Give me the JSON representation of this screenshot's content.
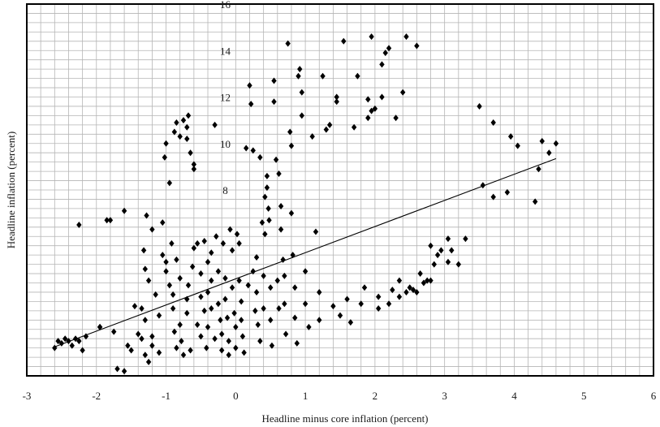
{
  "chart_data": {
    "type": "scatter",
    "title": "",
    "xlabel": "Headline minus core inflation (percent)",
    "ylabel": "Headline inflation (percent)",
    "xlim": [
      -3,
      6
    ],
    "ylim": [
      0,
      16
    ],
    "x_ticks": [
      -3,
      -2,
      -1,
      0,
      1,
      2,
      3,
      4,
      5,
      6
    ],
    "y_ticks_labeled": [
      8,
      10,
      12,
      14,
      16
    ],
    "grid": true,
    "series": [
      {
        "marker": "diamond",
        "color": "#000000",
        "points": [
          [
            -2.6,
            1.2
          ],
          [
            -2.55,
            1.5
          ],
          [
            -2.5,
            1.4
          ],
          [
            -2.45,
            1.6
          ],
          [
            -2.4,
            1.5
          ],
          [
            -2.35,
            1.3
          ],
          [
            -2.3,
            1.6
          ],
          [
            -2.25,
            1.5
          ],
          [
            -2.2,
            1.1
          ],
          [
            -2.15,
            1.7
          ],
          [
            -2.25,
            6.5
          ],
          [
            -1.85,
            6.7
          ],
          [
            -1.8,
            6.7
          ],
          [
            -1.95,
            2.1
          ],
          [
            -1.95,
            2.1
          ],
          [
            -1.75,
            1.9
          ],
          [
            -1.6,
            7.1
          ],
          [
            -1.6,
            0.2
          ],
          [
            -1.55,
            1.3
          ],
          [
            -1.5,
            1.1
          ],
          [
            -1.7,
            0.3
          ],
          [
            -1.45,
            3.0
          ],
          [
            -1.4,
            1.8
          ],
          [
            -1.35,
            2.9
          ],
          [
            -1.35,
            1.6
          ],
          [
            -1.3,
            2.4
          ],
          [
            -1.3,
            0.9
          ],
          [
            -1.25,
            0.6
          ],
          [
            -1.2,
            1.3
          ],
          [
            -1.2,
            6.3
          ],
          [
            -1.28,
            6.9
          ],
          [
            -1.32,
            5.4
          ],
          [
            -1.3,
            4.6
          ],
          [
            -1.25,
            4.1
          ],
          [
            -1.2,
            1.7
          ],
          [
            -1.15,
            3.5
          ],
          [
            -1.1,
            2.6
          ],
          [
            -1.1,
            1.0
          ],
          [
            -1.05,
            5.2
          ],
          [
            -1.0,
            4.5
          ],
          [
            -1.05,
            6.6
          ],
          [
            -1.02,
            9.4
          ],
          [
            -1.0,
            10.0
          ],
          [
            -0.95,
            8.3
          ],
          [
            -1.0,
            4.9
          ],
          [
            -0.95,
            3.9
          ],
          [
            -0.9,
            3.5
          ],
          [
            -0.9,
            2.9
          ],
          [
            -0.88,
            1.9
          ],
          [
            -0.85,
            1.2
          ],
          [
            -0.92,
            5.7
          ],
          [
            -0.85,
            5.0
          ],
          [
            -0.8,
            4.2
          ],
          [
            -0.8,
            2.2
          ],
          [
            -0.78,
            1.5
          ],
          [
            -0.75,
            0.9
          ],
          [
            -0.7,
            3.3
          ],
          [
            -0.7,
            2.7
          ],
          [
            -0.68,
            3.9
          ],
          [
            -0.65,
            1.1
          ],
          [
            -0.88,
            10.5
          ],
          [
            -0.85,
            10.9
          ],
          [
            -0.8,
            10.3
          ],
          [
            -0.75,
            11.0
          ],
          [
            -0.7,
            10.2
          ],
          [
            -0.7,
            10.7
          ],
          [
            -0.68,
            11.2
          ],
          [
            -0.65,
            9.6
          ],
          [
            -0.6,
            9.1
          ],
          [
            -0.6,
            8.9
          ],
          [
            -0.62,
            4.7
          ],
          [
            -0.6,
            5.5
          ],
          [
            -0.55,
            5.7
          ],
          [
            -0.55,
            2.2
          ],
          [
            -0.5,
            4.4
          ],
          [
            -0.5,
            3.4
          ],
          [
            -0.5,
            1.7
          ],
          [
            -0.45,
            5.8
          ],
          [
            -0.45,
            2.8
          ],
          [
            -0.42,
            1.2
          ],
          [
            -0.4,
            4.9
          ],
          [
            -0.4,
            3.6
          ],
          [
            -0.4,
            2.1
          ],
          [
            -0.35,
            5.3
          ],
          [
            -0.35,
            4.1
          ],
          [
            -0.35,
            2.9
          ],
          [
            -0.3,
            1.6
          ],
          [
            -0.3,
            10.8
          ],
          [
            -0.28,
            6.0
          ],
          [
            -0.25,
            4.5
          ],
          [
            -0.25,
            3.1
          ],
          [
            -0.22,
            2.4
          ],
          [
            -0.2,
            1.8
          ],
          [
            -0.2,
            1.1
          ],
          [
            -0.18,
            5.7
          ],
          [
            -0.15,
            4.2
          ],
          [
            -0.15,
            3.3
          ],
          [
            -0.12,
            2.5
          ],
          [
            -0.1,
            1.5
          ],
          [
            -0.1,
            0.9
          ],
          [
            -0.08,
            6.3
          ],
          [
            -0.05,
            5.4
          ],
          [
            -0.05,
            3.8
          ],
          [
            -0.02,
            2.7
          ],
          [
            0.0,
            2.1
          ],
          [
            0.0,
            1.2
          ],
          [
            0.02,
            6.1
          ],
          [
            0.05,
            5.7
          ],
          [
            0.05,
            4.1
          ],
          [
            0.08,
            3.2
          ],
          [
            0.08,
            2.4
          ],
          [
            0.1,
            1.7
          ],
          [
            0.12,
            1.0
          ],
          [
            0.15,
            9.8
          ],
          [
            0.18,
            3.9
          ],
          [
            0.2,
            12.5
          ],
          [
            0.22,
            11.7
          ],
          [
            0.25,
            9.7
          ],
          [
            0.25,
            4.5
          ],
          [
            0.28,
            2.8
          ],
          [
            0.3,
            5.1
          ],
          [
            0.3,
            3.6
          ],
          [
            0.32,
            2.2
          ],
          [
            0.35,
            1.5
          ],
          [
            0.35,
            9.4
          ],
          [
            0.38,
            6.6
          ],
          [
            0.4,
            4.3
          ],
          [
            0.4,
            2.9
          ],
          [
            0.42,
            6.1
          ],
          [
            0.42,
            7.7
          ],
          [
            0.45,
            8.1
          ],
          [
            0.45,
            8.6
          ],
          [
            0.47,
            7.2
          ],
          [
            0.48,
            6.7
          ],
          [
            0.5,
            3.8
          ],
          [
            0.5,
            2.4
          ],
          [
            0.52,
            1.3
          ],
          [
            0.55,
            12.7
          ],
          [
            0.55,
            11.8
          ],
          [
            0.58,
            9.3
          ],
          [
            0.6,
            4.1
          ],
          [
            0.62,
            2.9
          ],
          [
            0.62,
            8.7
          ],
          [
            0.65,
            7.3
          ],
          [
            0.65,
            6.3
          ],
          [
            0.68,
            5.0
          ],
          [
            0.7,
            4.3
          ],
          [
            0.7,
            3.1
          ],
          [
            0.72,
            1.8
          ],
          [
            0.75,
            14.3
          ],
          [
            0.78,
            10.5
          ],
          [
            0.8,
            9.9
          ],
          [
            0.8,
            7.0
          ],
          [
            0.82,
            5.2
          ],
          [
            0.85,
            3.8
          ],
          [
            0.85,
            2.5
          ],
          [
            0.88,
            1.4
          ],
          [
            0.9,
            12.9
          ],
          [
            0.92,
            13.2
          ],
          [
            0.95,
            12.2
          ],
          [
            0.95,
            11.2
          ],
          [
            1.0,
            4.5
          ],
          [
            1.0,
            3.1
          ],
          [
            1.05,
            2.1
          ],
          [
            1.1,
            10.3
          ],
          [
            1.15,
            6.2
          ],
          [
            1.2,
            3.6
          ],
          [
            1.2,
            2.4
          ],
          [
            1.25,
            12.9
          ],
          [
            1.3,
            10.6
          ],
          [
            1.35,
            10.8
          ],
          [
            1.4,
            3.0
          ],
          [
            1.45,
            12.0
          ],
          [
            1.45,
            11.8
          ],
          [
            1.5,
            2.6
          ],
          [
            1.55,
            14.4
          ],
          [
            1.6,
            3.3
          ],
          [
            1.65,
            2.3
          ],
          [
            1.7,
            10.7
          ],
          [
            1.75,
            12.9
          ],
          [
            1.8,
            3.1
          ],
          [
            1.85,
            3.8
          ],
          [
            1.9,
            11.1
          ],
          [
            1.9,
            11.9
          ],
          [
            1.95,
            11.4
          ],
          [
            1.95,
            14.6
          ],
          [
            2.0,
            11.5
          ],
          [
            2.05,
            3.4
          ],
          [
            2.1,
            12.0
          ],
          [
            2.1,
            13.4
          ],
          [
            2.15,
            13.9
          ],
          [
            2.2,
            14.1
          ],
          [
            2.25,
            3.7
          ],
          [
            2.3,
            11.1
          ],
          [
            2.35,
            4.1
          ],
          [
            2.4,
            12.2
          ],
          [
            2.45,
            14.6
          ],
          [
            2.5,
            3.8
          ],
          [
            2.55,
            3.7
          ],
          [
            2.6,
            14.2
          ],
          [
            2.65,
            4.4
          ],
          [
            2.75,
            4.1
          ],
          [
            2.8,
            5.6
          ],
          [
            2.8,
            4.1
          ],
          [
            2.85,
            4.8
          ],
          [
            2.95,
            5.4
          ],
          [
            3.05,
            5.9
          ],
          [
            3.1,
            5.4
          ],
          [
            3.2,
            4.8
          ],
          [
            3.5,
            11.6
          ],
          [
            3.55,
            8.2
          ],
          [
            3.7,
            10.9
          ],
          [
            3.7,
            7.7
          ],
          [
            3.9,
            7.9
          ],
          [
            3.95,
            10.3
          ],
          [
            4.05,
            9.9
          ],
          [
            4.3,
            7.5
          ],
          [
            4.35,
            8.9
          ],
          [
            4.4,
            10.1
          ],
          [
            4.5,
            9.6
          ],
          [
            4.6,
            10.0
          ],
          [
            2.9,
            5.2
          ],
          [
            3.3,
            5.9
          ],
          [
            3.05,
            4.9
          ],
          [
            2.7,
            4.0
          ],
          [
            2.6,
            3.6
          ],
          [
            2.45,
            3.6
          ],
          [
            2.35,
            3.4
          ],
          [
            2.2,
            3.1
          ],
          [
            2.05,
            2.9
          ]
        ]
      }
    ],
    "trendline": {
      "x": [
        -2.6,
        4.6
      ],
      "y": [
        1.25,
        9.35
      ]
    }
  }
}
